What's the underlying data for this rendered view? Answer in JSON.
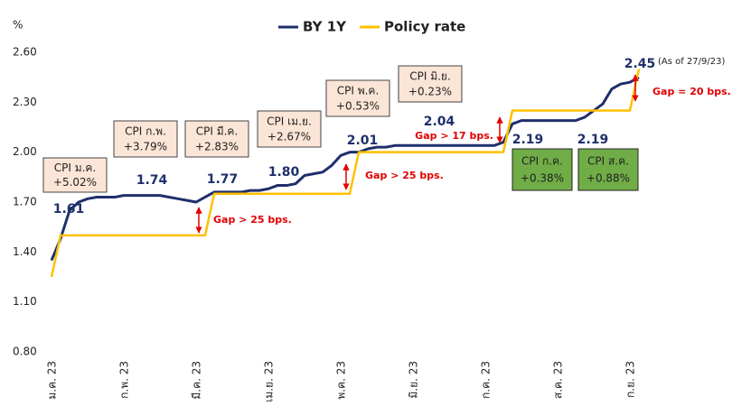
{
  "chart_data": {
    "type": "line",
    "y_unit": "%",
    "categories": [
      "ม.ค. 23",
      null,
      null,
      null,
      null,
      null,
      null,
      null,
      "ก.พ. 23",
      null,
      null,
      null,
      null,
      null,
      null,
      null,
      "มี.ค. 23",
      null,
      null,
      null,
      null,
      null,
      null,
      null,
      "เม.ย. 23",
      null,
      null,
      null,
      null,
      null,
      null,
      null,
      "พ.ค. 23",
      null,
      null,
      null,
      null,
      null,
      null,
      null,
      "มิ.ย. 23",
      null,
      null,
      null,
      null,
      null,
      null,
      null,
      "ก.ค. 23",
      null,
      null,
      null,
      null,
      null,
      null,
      null,
      "ส.ค. 23",
      null,
      null,
      null,
      null,
      null,
      null,
      null,
      "ก.ย. 23",
      null
    ],
    "series": [
      {
        "name": "BY 1Y",
        "color": "#1f2f6b",
        "values": [
          1.35,
          1.48,
          1.65,
          1.7,
          1.72,
          1.73,
          1.73,
          1.73,
          1.74,
          1.74,
          1.74,
          1.74,
          1.74,
          1.73,
          1.72,
          1.71,
          1.7,
          1.73,
          1.76,
          1.76,
          1.76,
          1.76,
          1.77,
          1.77,
          1.78,
          1.8,
          1.8,
          1.81,
          1.86,
          1.87,
          1.88,
          1.92,
          1.98,
          2.0,
          2.0,
          2.02,
          2.03,
          2.03,
          2.04,
          2.04,
          2.04,
          2.04,
          2.04,
          2.04,
          2.04,
          2.04,
          2.04,
          2.04,
          2.04,
          2.04,
          2.06,
          2.17,
          2.19,
          2.19,
          2.19,
          2.19,
          2.19,
          2.19,
          2.19,
          2.21,
          2.25,
          2.29,
          2.38,
          2.41,
          2.42,
          2.45
        ]
      },
      {
        "name": "Policy rate",
        "color": "#ffc000",
        "values": [
          1.25,
          1.5,
          1.5,
          1.5,
          1.5,
          1.5,
          1.5,
          1.5,
          1.5,
          1.5,
          1.5,
          1.5,
          1.5,
          1.5,
          1.5,
          1.5,
          1.5,
          1.5,
          1.75,
          1.75,
          1.75,
          1.75,
          1.75,
          1.75,
          1.75,
          1.75,
          1.75,
          1.75,
          1.75,
          1.75,
          1.75,
          1.75,
          1.75,
          1.75,
          2.0,
          2.0,
          2.0,
          2.0,
          2.0,
          2.0,
          2.0,
          2.0,
          2.0,
          2.0,
          2.0,
          2.0,
          2.0,
          2.0,
          2.0,
          2.0,
          2.0,
          2.25,
          2.25,
          2.25,
          2.25,
          2.25,
          2.25,
          2.25,
          2.25,
          2.25,
          2.25,
          2.25,
          2.25,
          2.25,
          2.25,
          2.5
        ]
      }
    ],
    "ylim": [
      0.8,
      2.6
    ],
    "yticks": [
      {
        "value": 0.8,
        "label": "0.80"
      },
      {
        "value": 1.1,
        "label": "1.10"
      },
      {
        "value": 1.4,
        "label": "1.40"
      },
      {
        "value": 1.7,
        "label": "1.70"
      },
      {
        "value": 2.0,
        "label": "2.00"
      },
      {
        "value": 2.3,
        "label": "2.30"
      },
      {
        "value": 2.6,
        "label": "2.60"
      }
    ],
    "grid": false,
    "legend": "top",
    "point_labels": [
      "1.61",
      "1.74",
      "1.77",
      "1.80",
      "2.01",
      "2.04",
      "2.19",
      "2.19",
      "2.45"
    ],
    "gap_labels": [
      "Gap > 25 bps.",
      "Gap > 25 bps.",
      "Gap > 17 bps.",
      "Gap = 20 bps."
    ],
    "note": "(As of 27/9/23)",
    "cpi_boxes": [
      {
        "label": "CPI ม.ค.",
        "value": "+5.02%"
      },
      {
        "label": "CPI ก.พ.",
        "value": "+3.79%"
      },
      {
        "label": "CPI มี.ค.",
        "value": "+2.83%"
      },
      {
        "label": "CPI เม.ย.",
        "value": "+2.67%"
      },
      {
        "label": "CPI พ.ค.",
        "value": "+0.53%"
      },
      {
        "label": "CPI มิ.ย.",
        "value": "+0.23%"
      },
      {
        "label": "CPI ก.ค.",
        "value": "+0.38%"
      },
      {
        "label": "CPI ส.ค.",
        "value": "+0.88%"
      }
    ]
  }
}
